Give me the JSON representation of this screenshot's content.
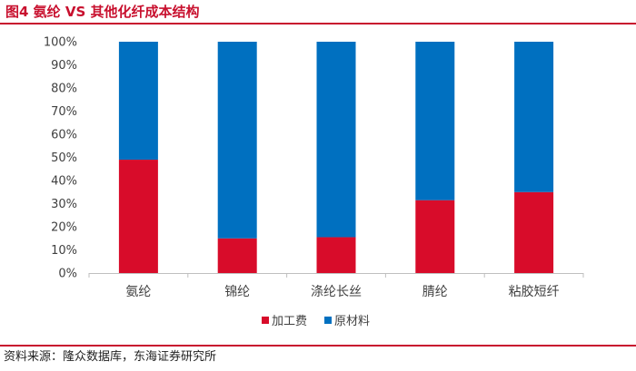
{
  "figure": {
    "title": "图4  氨纶 VS 其他化纤成本结构",
    "source": "资料来源：隆众数据库，东海证券研究所"
  },
  "colors": {
    "accent": "#c8102e",
    "processing": "#d80c2a",
    "material": "#0070c0",
    "axis": "#bfbfbf",
    "text": "#404040"
  },
  "chart_data": {
    "type": "bar",
    "stacked": true,
    "percent": true,
    "categories": [
      "氨纶",
      "锦纶",
      "涤纶长丝",
      "腈纶",
      "粘胶短纤"
    ],
    "series": [
      {
        "name": "加工费",
        "values": [
          49,
          15,
          15.5,
          31.5,
          35
        ]
      },
      {
        "name": "原材料",
        "values": [
          51,
          85,
          84.5,
          68.5,
          65
        ]
      }
    ],
    "yticks": [
      "0%",
      "10%",
      "20%",
      "30%",
      "40%",
      "50%",
      "60%",
      "70%",
      "80%",
      "90%",
      "100%"
    ],
    "ylim": [
      0,
      100
    ],
    "grid": false,
    "legend_position": "bottom"
  }
}
